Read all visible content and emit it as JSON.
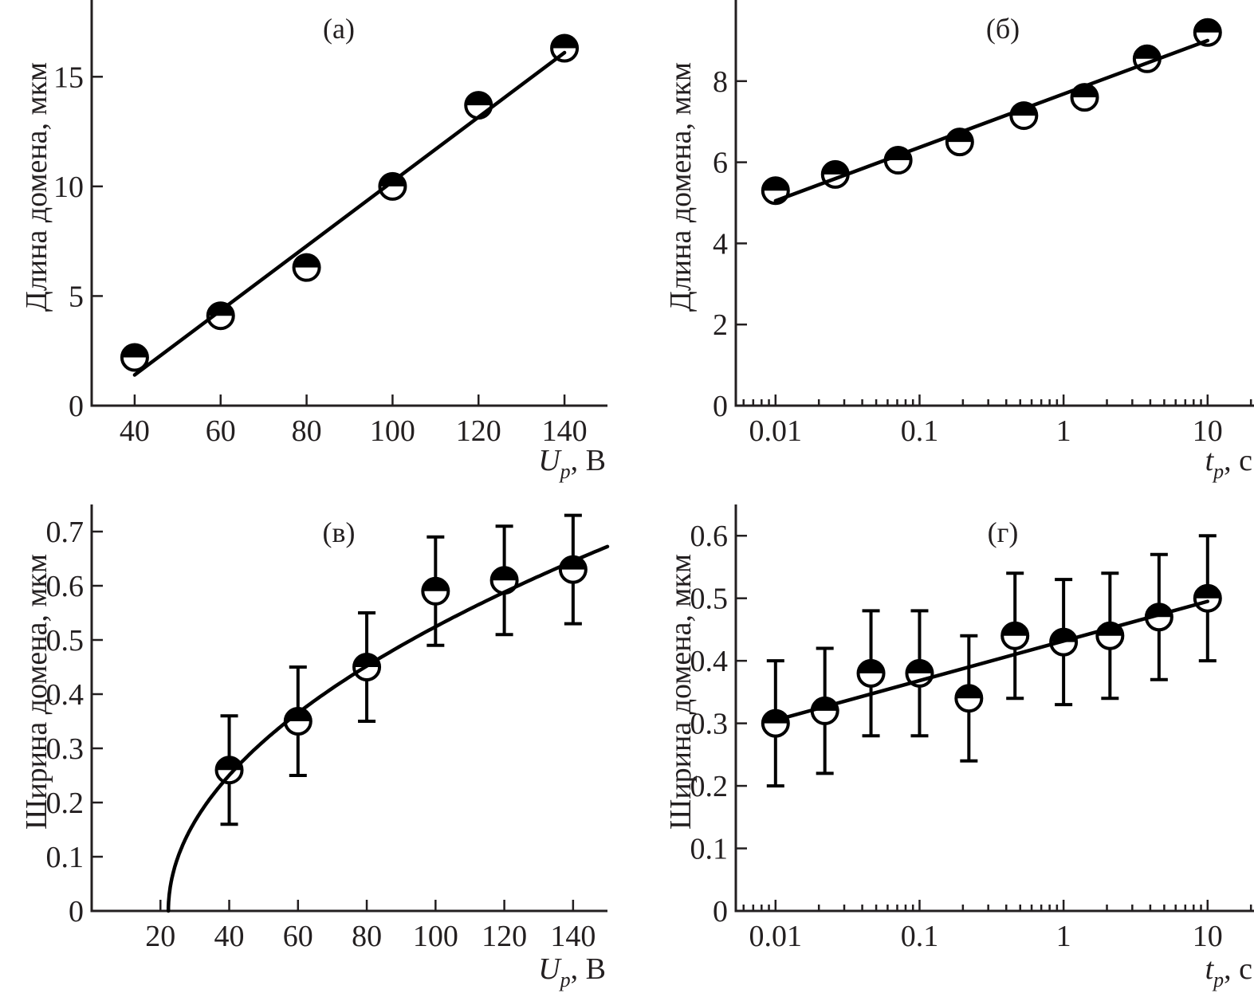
{
  "figure": {
    "panels": [
      "a",
      "b",
      "c",
      "d"
    ]
  },
  "chart_data": [
    {
      "id": "a",
      "type": "scatter",
      "panel_label": "(а)",
      "title": "",
      "xlabel_main": "U",
      "xlabel_sub": "p",
      "xlabel_unit": ", В",
      "ylabel": "Длина домена, мкм",
      "xscale": "linear",
      "xlim": [
        30,
        150
      ],
      "ylim": [
        0,
        18.5
      ],
      "xticks": [
        40,
        60,
        80,
        100,
        120,
        140
      ],
      "xtick_labels": [
        "40",
        "60",
        "80",
        "100",
        "120",
        "140"
      ],
      "yticks": [
        0,
        5,
        10,
        15
      ],
      "ytick_labels": [
        "0",
        "5",
        "10",
        "15"
      ],
      "grid": false,
      "points": [
        {
          "x": 40,
          "y": 2.2
        },
        {
          "x": 60,
          "y": 4.1
        },
        {
          "x": 80,
          "y": 6.3
        },
        {
          "x": 100,
          "y": 10.0
        },
        {
          "x": 120,
          "y": 13.7
        },
        {
          "x": 140,
          "y": 16.3
        }
      ],
      "fit": {
        "kind": "line",
        "x": [
          40,
          140
        ],
        "y": [
          1.4,
          16.1
        ]
      }
    },
    {
      "id": "b",
      "type": "scatter",
      "panel_label": "(б)",
      "title": "",
      "xlabel_main": "t",
      "xlabel_sub": "p",
      "xlabel_unit": ", с",
      "ylabel": "Длина домена, мкм",
      "xscale": "log",
      "xlim": [
        0.0053,
        21
      ],
      "ylim": [
        0,
        10
      ],
      "xticks": [
        0.01,
        0.1,
        1,
        10
      ],
      "xtick_labels": [
        "0.01",
        "0.1",
        "1",
        "10"
      ],
      "yticks": [
        0,
        2,
        4,
        6,
        8
      ],
      "ytick_labels": [
        "0",
        "2",
        "4",
        "6",
        "8"
      ],
      "grid": false,
      "points": [
        {
          "x": 0.01,
          "y": 5.3
        },
        {
          "x": 0.026,
          "y": 5.7
        },
        {
          "x": 0.071,
          "y": 6.05
        },
        {
          "x": 0.19,
          "y": 6.5
        },
        {
          "x": 0.53,
          "y": 7.15
        },
        {
          "x": 1.4,
          "y": 7.6
        },
        {
          "x": 3.8,
          "y": 8.55
        },
        {
          "x": 10,
          "y": 9.2
        }
      ],
      "fit": {
        "kind": "logline",
        "x": [
          0.01,
          10
        ],
        "y": [
          5.05,
          9.0
        ]
      }
    },
    {
      "id": "c",
      "type": "scatter",
      "panel_label": "(в)",
      "title": "",
      "xlabel_main": "U",
      "xlabel_sub": "p",
      "xlabel_unit": ", В",
      "ylabel": "Ширина домена, мкм",
      "xscale": "linear",
      "xlim": [
        0,
        150
      ],
      "ylim": [
        0,
        0.75
      ],
      "xticks": [
        20,
        40,
        60,
        80,
        100,
        120,
        140
      ],
      "xtick_labels": [
        "20",
        "40",
        "60",
        "80",
        "100",
        "120",
        "140"
      ],
      "yticks": [
        0,
        0.1,
        0.2,
        0.3,
        0.4,
        0.5,
        0.6,
        0.7
      ],
      "ytick_labels": [
        "0",
        "0.1",
        "0.2",
        "0.3",
        "0.4",
        "0.5",
        "0.6",
        "0.7"
      ],
      "grid": false,
      "points": [
        {
          "x": 40,
          "y": 0.26,
          "err_low": 0.16,
          "err_high": 0.36
        },
        {
          "x": 60,
          "y": 0.35,
          "err_low": 0.25,
          "err_high": 0.45
        },
        {
          "x": 80,
          "y": 0.45,
          "err_low": 0.35,
          "err_high": 0.55
        },
        {
          "x": 100,
          "y": 0.59,
          "err_low": 0.49,
          "err_high": 0.69
        },
        {
          "x": 120,
          "y": 0.61,
          "err_low": 0.51,
          "err_high": 0.71
        },
        {
          "x": 140,
          "y": 0.63,
          "err_low": 0.53,
          "err_high": 0.73
        }
      ],
      "fit": {
        "kind": "sqrt",
        "x0": 22.3,
        "a": 0.0595,
        "x_end": 150
      }
    },
    {
      "id": "d",
      "type": "scatter",
      "panel_label": "(г)",
      "title": "",
      "xlabel_main": "t",
      "xlabel_sub": "p",
      "xlabel_unit": ", с",
      "ylabel": "Ширина домена, мкм",
      "xscale": "log",
      "xlim": [
        0.0053,
        21
      ],
      "ylim": [
        0,
        0.65
      ],
      "xticks": [
        0.01,
        0.1,
        1,
        10
      ],
      "xtick_labels": [
        "0.01",
        "0.1",
        "1",
        "10"
      ],
      "yticks": [
        0,
        0.1,
        0.2,
        0.3,
        0.4,
        0.5,
        0.6
      ],
      "ytick_labels": [
        "0",
        "0.1",
        "0.2",
        "0.3",
        "0.4",
        "0.5",
        "0.6"
      ],
      "grid": false,
      "points": [
        {
          "x": 0.01,
          "y": 0.3,
          "err_low": 0.2,
          "err_high": 0.4
        },
        {
          "x": 0.022,
          "y": 0.32,
          "err_low": 0.22,
          "err_high": 0.42
        },
        {
          "x": 0.046,
          "y": 0.38,
          "err_low": 0.28,
          "err_high": 0.48
        },
        {
          "x": 0.1,
          "y": 0.38,
          "err_low": 0.28,
          "err_high": 0.48
        },
        {
          "x": 0.22,
          "y": 0.34,
          "err_low": 0.24,
          "err_high": 0.44
        },
        {
          "x": 0.46,
          "y": 0.44,
          "err_low": 0.34,
          "err_high": 0.54
        },
        {
          "x": 1.0,
          "y": 0.43,
          "err_low": 0.33,
          "err_high": 0.53
        },
        {
          "x": 2.1,
          "y": 0.44,
          "err_low": 0.34,
          "err_high": 0.54
        },
        {
          "x": 4.6,
          "y": 0.47,
          "err_low": 0.37,
          "err_high": 0.57
        },
        {
          "x": 10,
          "y": 0.5,
          "err_low": 0.4,
          "err_high": 0.6
        }
      ],
      "fit": {
        "kind": "logline",
        "x": [
          0.01,
          10
        ],
        "y": [
          0.305,
          0.495
        ]
      }
    }
  ]
}
